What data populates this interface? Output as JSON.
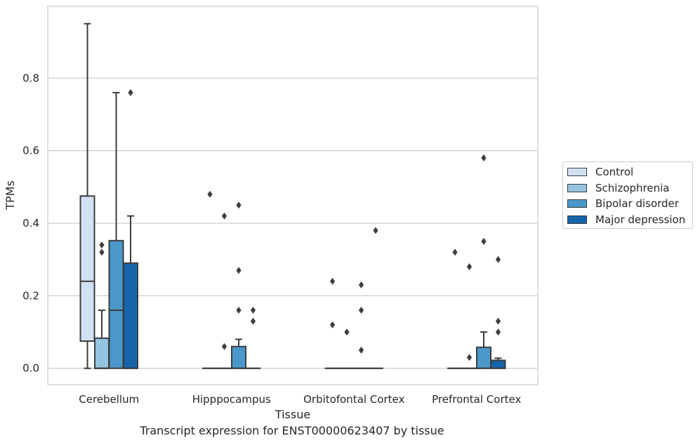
{
  "caption": "Transcript expression for ENST00000623407 by tissue",
  "chart_data": {
    "type": "boxplot",
    "xlabel": "Tissue",
    "ylabel": "TPMs",
    "ylim": [
      -0.045,
      0.998
    ],
    "yticks": [
      0.0,
      0.2,
      0.4,
      0.6,
      0.8
    ],
    "ytick_labels": [
      "0.0",
      "0.2",
      "0.4",
      "0.6",
      "0.8"
    ],
    "grid": "horizontal",
    "legend_position": "right",
    "categories": [
      "Cerebellum",
      "Hipppocampus",
      "Orbitofontal Cortex",
      "Prefrontal Cortex"
    ],
    "series": [
      {
        "name": "Control",
        "color": "#d0e1f2",
        "boxes": [
          {
            "q1": 0.075,
            "median": 0.24,
            "q3": 0.475,
            "whislo": 0.0,
            "whishi": 0.95,
            "fliers": []
          },
          {
            "q1": 0.0,
            "median": 0.0,
            "q3": 0.0,
            "whislo": 0.0,
            "whishi": 0.0,
            "fliers": [
              0.48
            ]
          },
          {
            "q1": 0.0,
            "median": 0.0,
            "q3": 0.0,
            "whislo": 0.0,
            "whishi": 0.0,
            "fliers": [
              0.24,
              0.12
            ]
          },
          {
            "q1": 0.0,
            "median": 0.0,
            "q3": 0.0,
            "whislo": 0.0,
            "whishi": 0.0,
            "fliers": [
              0.32
            ]
          }
        ]
      },
      {
        "name": "Schizophrenia",
        "color": "#94c4df",
        "boxes": [
          {
            "q1": 0.0,
            "median": 0.0,
            "q3": 0.083,
            "whislo": 0.0,
            "whishi": 0.16,
            "fliers": [
              0.34,
              0.32
            ]
          },
          {
            "q1": 0.0,
            "median": 0.0,
            "q3": 0.0,
            "whislo": 0.0,
            "whishi": 0.0,
            "fliers": [
              0.42,
              0.06
            ]
          },
          {
            "q1": 0.0,
            "median": 0.0,
            "q3": 0.0,
            "whislo": 0.0,
            "whishi": 0.0,
            "fliers": [
              0.1
            ]
          },
          {
            "q1": 0.0,
            "median": 0.0,
            "q3": 0.0,
            "whislo": 0.0,
            "whishi": 0.0,
            "fliers": [
              0.28,
              0.03
            ]
          }
        ]
      },
      {
        "name": "Bipolar disorder",
        "color": "#4a98c9",
        "boxes": [
          {
            "q1": 0.0,
            "median": 0.16,
            "q3": 0.352,
            "whislo": 0.0,
            "whishi": 0.76,
            "fliers": []
          },
          {
            "q1": 0.0,
            "median": 0.0,
            "q3": 0.06,
            "whislo": 0.0,
            "whishi": 0.08,
            "fliers": [
              0.45,
              0.27,
              0.16
            ]
          },
          {
            "q1": 0.0,
            "median": 0.0,
            "q3": 0.0,
            "whislo": 0.0,
            "whishi": 0.0,
            "fliers": [
              0.23,
              0.16,
              0.05
            ]
          },
          {
            "q1": 0.0,
            "median": 0.0,
            "q3": 0.058,
            "whislo": 0.0,
            "whishi": 0.1,
            "fliers": [
              0.58,
              0.35
            ]
          }
        ]
      },
      {
        "name": "Major depression",
        "color": "#1764ab",
        "boxes": [
          {
            "q1": 0.0,
            "median": 0.0,
            "q3": 0.29,
            "whislo": 0.0,
            "whishi": 0.42,
            "fliers": [
              0.76
            ]
          },
          {
            "q1": 0.0,
            "median": 0.0,
            "q3": 0.0,
            "whislo": 0.0,
            "whishi": 0.0,
            "fliers": [
              0.16,
              0.13
            ]
          },
          {
            "q1": 0.0,
            "median": 0.0,
            "q3": 0.0,
            "whislo": 0.0,
            "whishi": 0.0,
            "fliers": [
              0.38
            ]
          },
          {
            "q1": 0.0,
            "median": 0.0,
            "q3": 0.022,
            "whislo": 0.0,
            "whishi": 0.028,
            "fliers": [
              0.3,
              0.13,
              0.1
            ]
          }
        ]
      }
    ]
  }
}
